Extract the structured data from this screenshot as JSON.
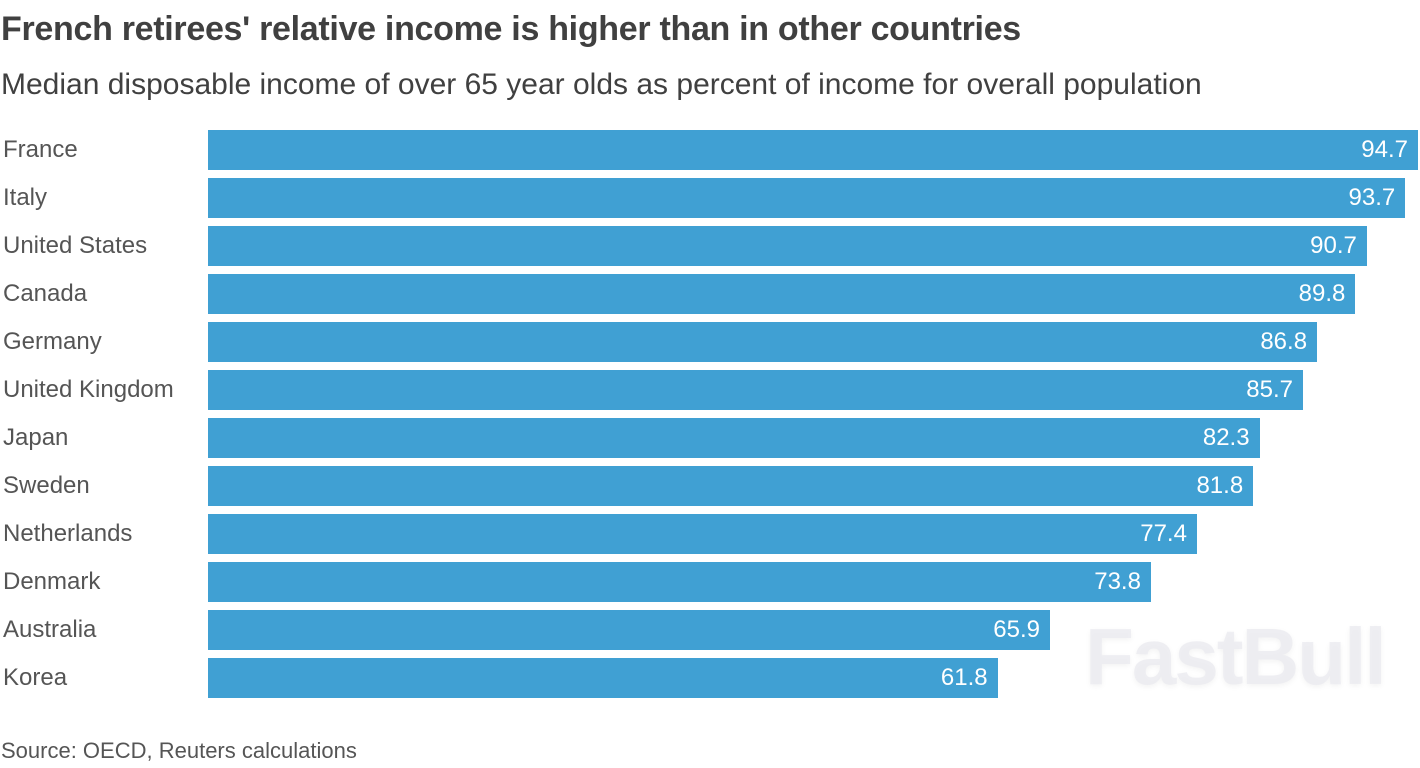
{
  "chart_data": {
    "type": "bar",
    "orientation": "horizontal",
    "title": "French retirees' relative income is higher than in other countries",
    "subtitle": "Median disposable income of over 65 year olds as percent of income for overall population",
    "categories": [
      "France",
      "Italy",
      "United States",
      "Canada",
      "Germany",
      "United Kingdom",
      "Japan",
      "Sweden",
      "Netherlands",
      "Denmark",
      "Australia",
      "Korea"
    ],
    "values": [
      94.7,
      93.7,
      90.7,
      89.8,
      86.8,
      85.7,
      82.3,
      81.8,
      77.4,
      73.8,
      65.9,
      61.8
    ],
    "xlim": [
      0,
      94.7
    ],
    "grid": false,
    "data_labels": true,
    "bar_color": "#40a0d3",
    "source": "Source: OECD, Reuters calculations"
  },
  "watermark": "FastBull"
}
